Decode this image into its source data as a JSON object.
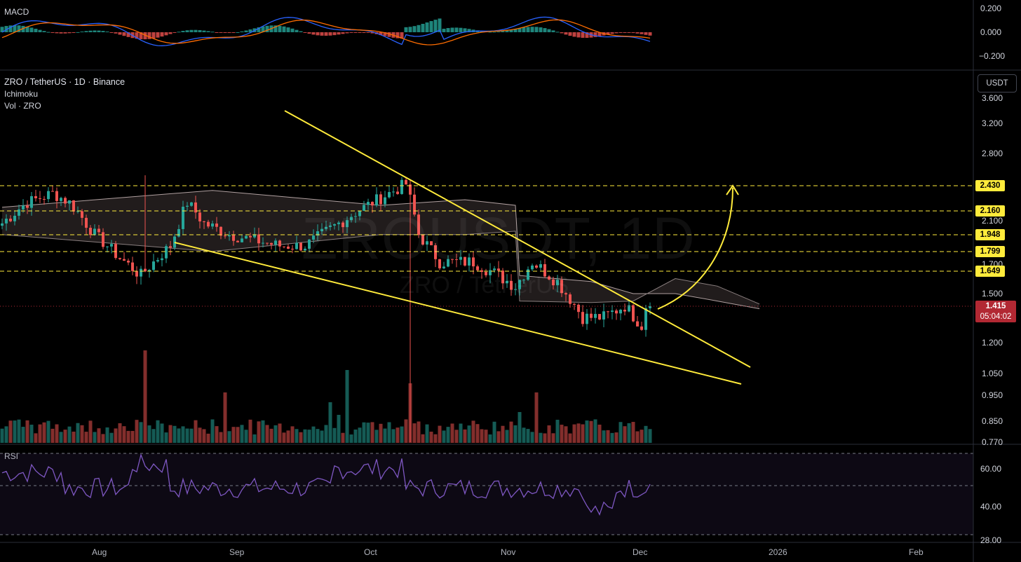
{
  "panes": {
    "macd": {
      "label": "MACD",
      "ticks": [
        "0.200",
        "0.000",
        "−0.200"
      ]
    },
    "rsi": {
      "label": "RSI",
      "ticks": [
        "60.00",
        "40.00",
        "28.00"
      ]
    }
  },
  "header": {
    "symbol": "ZRO / TetherUS · 1D · Binance",
    "indicators": [
      "Ichimoku",
      "Vol · ZRO"
    ]
  },
  "watermark": {
    "main": "ZROUSDT, 1D",
    "sub": "ZRO / TetherUS"
  },
  "price_axis": {
    "currency": "USDT",
    "ticks": [
      "3.600",
      "3.200",
      "2.800",
      "2.100",
      "1.700",
      "1.500",
      "1.200",
      "1.050",
      "0.950",
      "0.850",
      "0.770"
    ],
    "levels": [
      "2.430",
      "2.160",
      "1.948",
      "1.799",
      "1.649"
    ],
    "current": {
      "price": "1.415",
      "countdown": "05:04:02"
    }
  },
  "time_axis": [
    "Aug",
    "Sep",
    "Oct",
    "Nov",
    "Dec",
    "2026",
    "Feb"
  ],
  "colors": {
    "up": "#26a69a",
    "down": "#ef5350",
    "trendline": "#ffeb3b",
    "macd_line": "#2962ff",
    "signal_line": "#ff6d00",
    "rsi_line": "#7e57c2",
    "cloud": "#5d4e4e"
  },
  "chart_data": {
    "type": "candlestick",
    "symbol": "ZROUSDT",
    "timeframe": "1D",
    "current_price": 1.415,
    "horizontal_levels": [
      2.43,
      2.16,
      1.948,
      1.799,
      1.649
    ],
    "pattern": "falling wedge with projected breakout arrow toward 2.430",
    "rsi_last": 52,
    "x_range": [
      "Aug",
      "Feb"
    ]
  }
}
